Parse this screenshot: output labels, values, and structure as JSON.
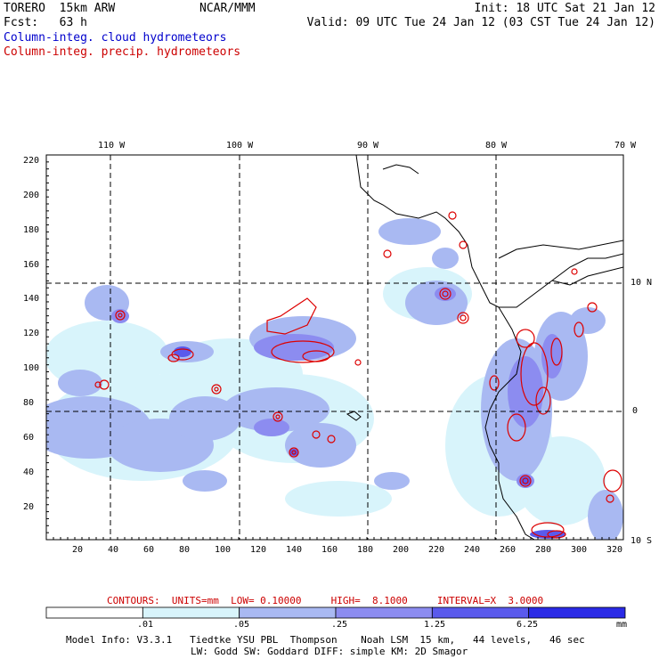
{
  "header": {
    "title": "TORERO  15km ARW",
    "center": "NCAR/MMM",
    "init": "Init: 18 UTC Sat 21 Jan 12",
    "fcst": "Fcst:   63 h",
    "valid": "Valid: 09 UTC Tue 24 Jan 12 (03 CST Tue 24 Jan 12)",
    "field1": "Column-integ. cloud hydrometeors",
    "field2": "Column-integ. precip. hydrometeors"
  },
  "top_lon_labels": [
    "110 W",
    "100 W",
    "90 W",
    "80 W",
    "70 W"
  ],
  "right_lat_labels": [
    "10 N",
    "0",
    "10 S"
  ],
  "y_axis": [
    "220",
    "200",
    "180",
    "160",
    "140",
    "120",
    "100",
    "80",
    "60",
    "40",
    "20"
  ],
  "x_axis": [
    "20",
    "40",
    "60",
    "80",
    "100",
    "120",
    "140",
    "160",
    "180",
    "200",
    "220",
    "240",
    "260",
    "280",
    "300",
    "320"
  ],
  "contour_info": "CONTOURS:  UNITS=mm  LOW= 0.10000     HIGH=  8.1000     INTERVAL=X  3.0000",
  "legend": {
    "bins": [
      ".01",
      ".05",
      ".25",
      "1.25",
      "6.25"
    ],
    "unit": "mm",
    "colors": [
      "#ffffff",
      "#d8f4fb",
      "#a9b9f2",
      "#8c8cf0",
      "#5a5aec",
      "#2a2ae6"
    ]
  },
  "model_info_line1": "Model Info: V3.3.1   Tiedtke YSU PBL  Thompson    Noah LSM  15 km,   44 levels,   46 sec",
  "model_info_line2": "LW: Godd SW: Goddard DIFF: simple KM: 2D Smagor",
  "colors": {
    "cloud_label": "#0000cc",
    "precip_label": "#cc0000",
    "contour": "#dd0000",
    "coast": "#000000"
  }
}
